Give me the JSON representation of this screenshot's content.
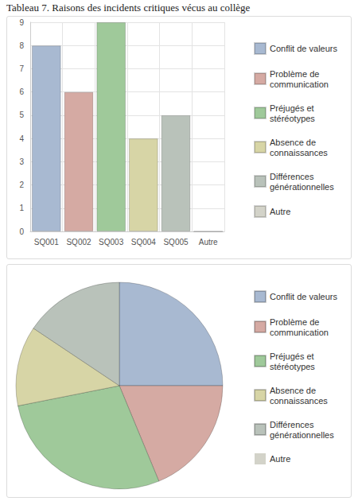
{
  "chart_data": [
    {
      "type": "bar",
      "title": "Tableau 7. Raisons des incidents critiques vécus au collège",
      "categories": [
        "SQ001",
        "SQ002",
        "SQ003",
        "SQ004",
        "SQ005",
        "Autre"
      ],
      "series": [
        {
          "name": "Conflit de valeurs",
          "color": "#a8b9d1",
          "values": [
            8,
            null,
            null,
            null,
            null,
            null
          ]
        },
        {
          "name": "Problème de communication",
          "color": "#d5aaa3",
          "values": [
            null,
            6,
            null,
            null,
            null,
            null
          ]
        },
        {
          "name": "Préjugés et stéréotypes",
          "color": "#9fc99a",
          "values": [
            null,
            null,
            9,
            null,
            null,
            null
          ]
        },
        {
          "name": "Absence de connaissances",
          "color": "#d7d5a6",
          "values": [
            null,
            null,
            null,
            4,
            null,
            null
          ]
        },
        {
          "name": "Différences générationnelles",
          "color": "#b9c2ba",
          "values": [
            null,
            null,
            null,
            null,
            5,
            null
          ]
        },
        {
          "name": "Autre",
          "color": "#d3d3c9",
          "values": [
            null,
            null,
            null,
            null,
            null,
            0
          ]
        }
      ],
      "ylim": [
        0,
        9
      ],
      "yticks": [
        0,
        1,
        2,
        3,
        4,
        5,
        6,
        7,
        8,
        9
      ],
      "grid": true,
      "legend": "right"
    },
    {
      "type": "pie",
      "categories": [
        "Conflit de valeurs",
        "Problème de communication",
        "Préjugés et stéréotypes",
        "Absence de connaissances",
        "Différences générationnelles",
        "Autre"
      ],
      "values": [
        8,
        6,
        9,
        4,
        5,
        0
      ],
      "colors": [
        "#a8b9d1",
        "#d5aaa3",
        "#9fc99a",
        "#d7d5a6",
        "#b9c2ba",
        "#d3d3c9"
      ],
      "legend": "right"
    }
  ]
}
